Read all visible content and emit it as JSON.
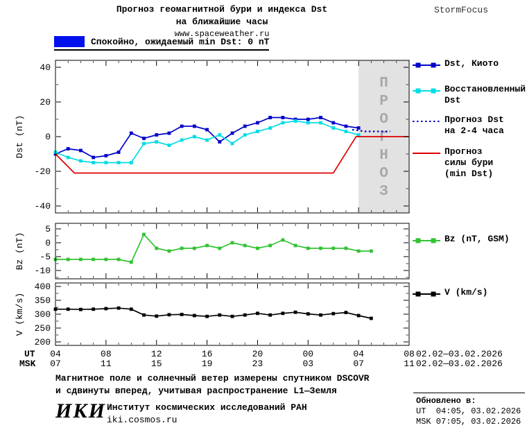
{
  "header": {
    "title_line1": "Прогноз геомагнитной бури и индекса Dst",
    "title_line2": "на ближайшие часы",
    "site": "www.spaceweather.ru",
    "brand": "StormFocus"
  },
  "status_legend": {
    "label": "Спокойно, ожидаемый min Dst: 0 nT",
    "color": "#0011ee"
  },
  "colors": {
    "band": "#e2e2e2",
    "band_text": "#a8a8a8",
    "kyoto_blue": "#0000cd",
    "restored_cyan": "#00dde4",
    "forecast_red": "#dd0000",
    "bz_green": "#32c232",
    "v_black": "#000000"
  },
  "xaxis": {
    "ut_label": "UT",
    "msk_label": "MSK",
    "ticks": [
      {
        "hour": 4,
        "ut": "04",
        "msk": "07"
      },
      {
        "hour": 8,
        "ut": "08",
        "msk": "11"
      },
      {
        "hour": 12,
        "ut": "12",
        "msk": "15"
      },
      {
        "hour": 16,
        "ut": "16",
        "msk": "19"
      },
      {
        "hour": 20,
        "ut": "20",
        "msk": "23"
      },
      {
        "hour": 24,
        "ut": "00",
        "msk": "03"
      },
      {
        "hour": 28,
        "ut": "04",
        "msk": "07"
      },
      {
        "hour": 32,
        "ut": "08",
        "msk": "11"
      }
    ],
    "ut_date_range": "02.02—03.02.2026",
    "msk_date_range": "02.02—03.02.2026"
  },
  "chart_data": [
    {
      "type": "line",
      "id": "dst-panel",
      "ylabel": "Dst (nT)",
      "ylim": [
        -44,
        44
      ],
      "yticks": [
        40,
        20,
        0,
        -20,
        -40
      ],
      "yminor": 10,
      "xlim": [
        4,
        32
      ],
      "forecast_band": {
        "from": 28,
        "to": 32,
        "label": "ПРОГНОЗ"
      },
      "series": [
        {
          "id": "dst-kyoto",
          "name": "Dst, Киото",
          "color": "#0000cd",
          "marker": true,
          "x": [
            4,
            5,
            6,
            7,
            8,
            9,
            10,
            11,
            12,
            13,
            14,
            15,
            16,
            17,
            18,
            19,
            20,
            21,
            22,
            23,
            24,
            25,
            26,
            27,
            28
          ],
          "y": [
            -10,
            -7,
            -8,
            -12,
            -11,
            -9,
            2,
            -1,
            1,
            2,
            6,
            6,
            4,
            -3,
            2,
            6,
            8,
            11,
            11,
            10,
            10,
            11,
            8,
            6,
            5
          ]
        },
        {
          "id": "dst-restored",
          "name": "Восстановленный Dst",
          "color": "#00dde4",
          "marker": true,
          "x": [
            4,
            5,
            6,
            7,
            8,
            9,
            10,
            11,
            12,
            13,
            14,
            15,
            16,
            17,
            18,
            19,
            20,
            21,
            22,
            23,
            24,
            25,
            26,
            27,
            28
          ],
          "y": [
            -9,
            -12,
            -14,
            -15,
            -15,
            -15,
            -15,
            -4,
            -3,
            -5,
            -2,
            0,
            -2,
            1,
            -4,
            1,
            3,
            5,
            8,
            9,
            8,
            8,
            5,
            3,
            1
          ]
        },
        {
          "id": "dst-forecast",
          "name": "Прогноз Dst на 2-4 часа",
          "color": "#0000cd",
          "dashed": true,
          "x": [
            27.5,
            28.5,
            29.5,
            30.5
          ],
          "y": [
            4,
            3,
            3,
            3
          ]
        },
        {
          "id": "storm-forecast",
          "name": "Прогноз силы бури (min Dst)",
          "color": "#dd0000",
          "x": [
            4,
            5.5,
            26,
            27.8,
            32
          ],
          "y": [
            -10,
            -21,
            -21,
            0,
            0
          ]
        }
      ]
    },
    {
      "type": "line",
      "id": "bz-panel",
      "ylabel": "Bz (nT)",
      "ylim": [
        -13,
        7
      ],
      "yticks": [
        5,
        0,
        -5,
        -10
      ],
      "yminor": 2.5,
      "xlim": [
        4,
        32
      ],
      "series": [
        {
          "id": "bz",
          "name": "Bz (nT, GSM)",
          "color": "#32c232",
          "marker": true,
          "x": [
            4,
            5,
            6,
            7,
            8,
            9,
            10,
            11,
            12,
            13,
            14,
            15,
            16,
            17,
            18,
            19,
            20,
            21,
            22,
            23,
            24,
            25,
            26,
            27,
            28,
            29
          ],
          "y": [
            -6,
            -6,
            -6,
            -6,
            -6,
            -6,
            -7,
            3,
            -2,
            -3,
            -2,
            -2,
            -1,
            -2,
            0,
            -1,
            -2,
            -1,
            1,
            -1,
            -2,
            -2,
            -2,
            -2,
            -3,
            -3
          ]
        }
      ]
    },
    {
      "type": "line",
      "id": "v-panel",
      "ylabel": "V (km/s)",
      "ylim": [
        187.5,
        412.5
      ],
      "yticks": [
        400,
        350,
        300,
        250,
        200
      ],
      "yminor": 25,
      "xlim": [
        4,
        32
      ],
      "series": [
        {
          "id": "v",
          "name": "V (km/s)",
          "color": "#000000",
          "marker": true,
          "x": [
            4,
            5,
            6,
            7,
            8,
            9,
            10,
            11,
            12,
            13,
            14,
            15,
            16,
            17,
            18,
            19,
            20,
            21,
            22,
            23,
            24,
            25,
            26,
            27,
            28,
            29
          ],
          "y": [
            318,
            318,
            317,
            318,
            320,
            322,
            318,
            297,
            293,
            298,
            299,
            295,
            292,
            297,
            292,
            297,
            303,
            297,
            303,
            307,
            301,
            297,
            302,
            306,
            295,
            285
          ]
        }
      ]
    }
  ],
  "legend_main": [
    {
      "id": "kyoto",
      "label": "Dst, Киото",
      "color": "#0000cd",
      "style": "marker"
    },
    {
      "id": "restored",
      "label": "Восстановленный\nDst",
      "color": "#00dde4",
      "style": "marker"
    },
    {
      "id": "forecast-dst",
      "label": "Прогноз Dst\nна 2-4 часа",
      "color": "#0000cd",
      "style": "dotted"
    },
    {
      "id": "storm-forecast",
      "label": "Прогноз\nсилы бури\n(min Dst)",
      "color": "#dd0000",
      "style": "line"
    }
  ],
  "legend_bz": {
    "label": "Bz (nT, GSM)",
    "color": "#32c232",
    "style": "marker"
  },
  "legend_v": {
    "label": "V (km/s)",
    "color": "#000000",
    "style": "marker"
  },
  "footer": {
    "note_line1": "Магнитное поле и солнечный ветер измерены спутником DSCOVR",
    "note_line2": "и сдвинуты вперед, учитывая распространение L1—Земля",
    "logo": "ИКИ",
    "institute": "Институт космических исследований РАН",
    "site": "iki.cosmos.ru",
    "updated_label": "Обновлено в:",
    "updated_ut": "UT  04:05, 03.02.2026",
    "updated_msk": "MSK 07:05, 03.02.2026"
  }
}
